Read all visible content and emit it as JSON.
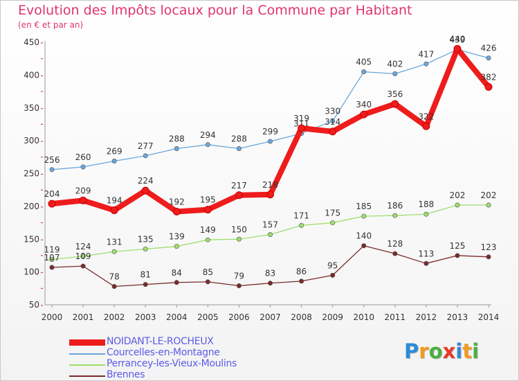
{
  "header": {
    "title": "Evolution des Impôts locaux pour la Commune par Habitant",
    "subtitle": "(en € et par an)"
  },
  "brand": {
    "letters": [
      "P",
      "r",
      "o",
      "x",
      "i",
      "t",
      "i"
    ],
    "colors": [
      "#2e8ad8",
      "#f39a1e",
      "#4cae3f",
      "#e8392c",
      "#2e8ad8",
      "#f39a1e",
      "#4cae3f"
    ]
  },
  "chart_data": {
    "type": "line",
    "title": "Evolution des Impôts locaux pour la Commune par Habitant",
    "subtitle": "(en € et par an)",
    "xlabel": "",
    "ylabel": "",
    "x": [
      "2000",
      "2001",
      "2002",
      "2003",
      "2004",
      "2005",
      "2006",
      "2007",
      "2008",
      "2009",
      "2010",
      "2011",
      "2012",
      "2013",
      "2014"
    ],
    "ylim": [
      50,
      450
    ],
    "yticks": [
      50,
      100,
      150,
      200,
      250,
      300,
      350,
      400,
      450
    ],
    "grid": false,
    "legend_position": "bottom-left",
    "series": [
      {
        "name": "Courcelles-en-Montagne",
        "color": "#6aa6dc",
        "values": [
          256,
          260,
          269,
          277,
          288,
          294,
          288,
          299,
          311,
          330,
          405,
          402,
          417,
          439,
          426
        ],
        "labels": [
          "256",
          "260",
          "269",
          "277",
          "288",
          "294",
          "288",
          "299",
          "311",
          "330",
          "405",
          "402",
          "417",
          "439",
          "426"
        ]
      },
      {
        "name": "Perrancey-les-Vieux-Moulins",
        "color": "#9dde6c",
        "values": [
          119,
          124,
          131,
          135,
          139,
          149,
          150,
          157,
          171,
          175,
          185,
          186,
          188,
          202,
          202
        ],
        "labels": [
          "119",
          "124",
          "131",
          "135",
          "139",
          "149",
          "150",
          "157",
          "171",
          "175",
          "185",
          "186",
          "188",
          "202",
          "202"
        ]
      },
      {
        "name": "Brennes",
        "color": "#7a2a2a",
        "values": [
          107,
          109,
          78,
          81,
          84,
          85,
          79,
          83,
          86,
          95,
          140,
          128,
          113,
          125,
          123
        ],
        "labels": [
          "107",
          "109",
          "78",
          "81",
          "84",
          "85",
          "79",
          "83",
          "86",
          "95",
          "140",
          "128",
          "113",
          "125",
          "123"
        ]
      },
      {
        "name": "NOIDANT-LE-ROCHEUX",
        "color": "#ee1c1c",
        "values": [
          204,
          209,
          194,
          224,
          192,
          195,
          217,
          218,
          319,
          314,
          340,
          356,
          322,
          440,
          382
        ],
        "labels": [
          "204",
          "209",
          "194",
          "224",
          "192",
          "195",
          "217",
          "218",
          "319",
          "314",
          "340",
          "356",
          "322",
          "440",
          "382"
        ]
      }
    ],
    "legend_order": [
      "NOIDANT-LE-ROCHEUX",
      "Courcelles-en-Montagne",
      "Perrancey-les-Vieux-Moulins",
      "Brennes"
    ]
  }
}
